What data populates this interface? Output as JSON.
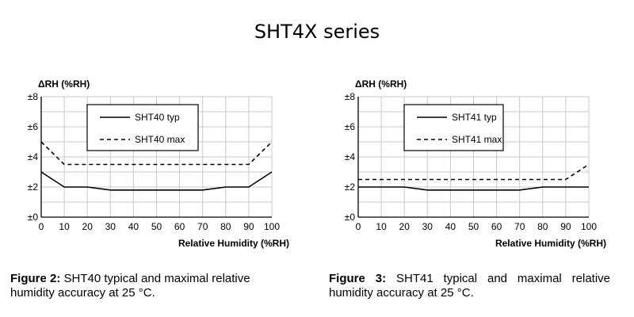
{
  "title": "SHT4X series",
  "chart_data": [
    {
      "type": "line",
      "ylabel": "ΔRH (%RH)",
      "xlabel": "Relative Humidity (%RH)",
      "xlim": [
        0,
        100
      ],
      "ylim": [
        0,
        8
      ],
      "x_ticks": [
        0,
        10,
        20,
        30,
        40,
        50,
        60,
        70,
        80,
        90,
        100
      ],
      "y_ticks": [
        0,
        2,
        4,
        6,
        8
      ],
      "y_tick_labels": [
        "±0",
        "±2",
        "±4",
        "±6",
        "±8"
      ],
      "grid": true,
      "legend": "top-left",
      "series": [
        {
          "name": "SHT40 typ",
          "style": "solid",
          "x": [
            0,
            10,
            20,
            30,
            40,
            50,
            60,
            70,
            80,
            90,
            100
          ],
          "values": [
            3.0,
            2.0,
            2.0,
            1.8,
            1.8,
            1.8,
            1.8,
            1.8,
            2.0,
            2.0,
            3.0
          ]
        },
        {
          "name": "SHT40 max",
          "style": "dashed",
          "x": [
            0,
            10,
            20,
            30,
            40,
            50,
            60,
            70,
            80,
            90,
            100
          ],
          "values": [
            5.0,
            3.5,
            3.5,
            3.5,
            3.5,
            3.5,
            3.5,
            3.5,
            3.5,
            3.5,
            5.0
          ]
        }
      ],
      "caption_bold": "Figure 2:",
      "caption_text": " SHT40 typical and maximal relative humidity accuracy at 25 °C."
    },
    {
      "type": "line",
      "ylabel": "ΔRH (%RH)",
      "xlabel": "Relative Humidity (%RH)",
      "xlim": [
        0,
        100
      ],
      "ylim": [
        0,
        8
      ],
      "x_ticks": [
        0,
        10,
        20,
        30,
        40,
        50,
        60,
        70,
        80,
        90,
        100
      ],
      "y_ticks": [
        0,
        2,
        4,
        6,
        8
      ],
      "y_tick_labels": [
        "±0",
        "±2",
        "±4",
        "±6",
        "±8"
      ],
      "grid": true,
      "legend": "top-center",
      "series": [
        {
          "name": "SHT41 typ",
          "style": "solid",
          "x": [
            0,
            10,
            20,
            30,
            40,
            50,
            60,
            70,
            80,
            90,
            100
          ],
          "values": [
            2.0,
            2.0,
            2.0,
            1.8,
            1.8,
            1.8,
            1.8,
            1.8,
            2.0,
            2.0,
            2.0
          ]
        },
        {
          "name": "SHT41 max",
          "style": "dashed",
          "x": [
            0,
            10,
            20,
            30,
            40,
            50,
            60,
            70,
            80,
            90,
            100
          ],
          "values": [
            2.5,
            2.5,
            2.5,
            2.5,
            2.5,
            2.5,
            2.5,
            2.5,
            2.5,
            2.5,
            3.5
          ]
        }
      ],
      "caption_bold": "Figure 3:",
      "caption_text": " SHT41 typical and maximal relative humidity accuracy at 25 °C."
    }
  ]
}
